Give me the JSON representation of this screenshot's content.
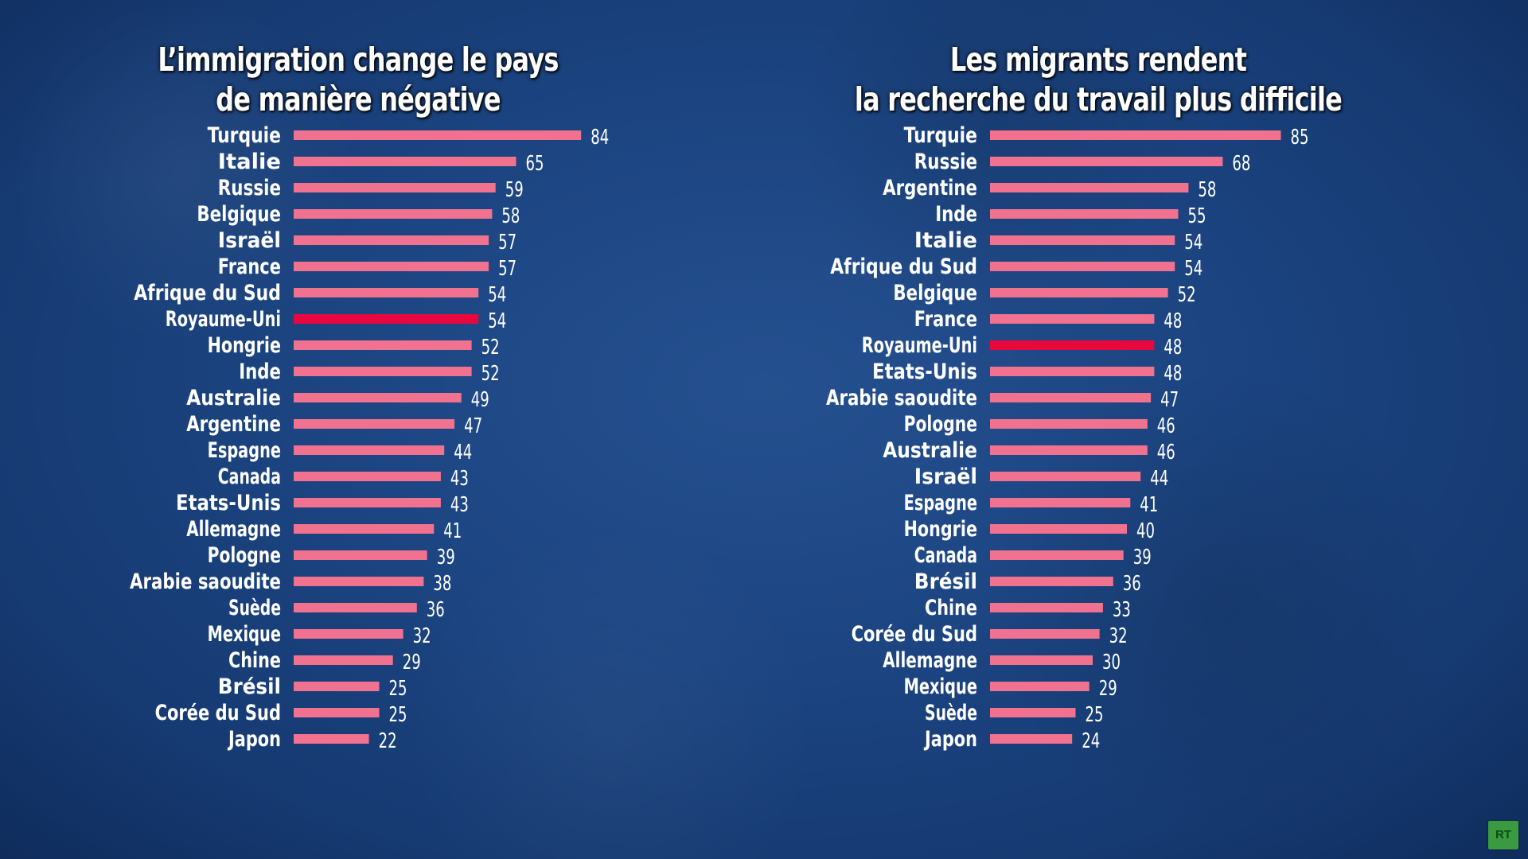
{
  "colors": {
    "bar": "#f0728f",
    "highlight_bar": "#e8083e",
    "text": "#ffffff",
    "background": "#1c4582"
  },
  "logo": {
    "text": "RT"
  },
  "chart_data": [
    {
      "type": "bar",
      "orientation": "horizontal",
      "title_lines": [
        "L’immigration change le pays",
        "de manière négative"
      ],
      "highlight": "Royaume-Uni",
      "categories": [
        "Turquie",
        "Italie",
        "Russie",
        "Belgique",
        "Israël",
        "France",
        "Afrique du Sud",
        "Royaume-Uni",
        "Hongrie",
        "Inde",
        "Australie",
        "Argentine",
        "Espagne",
        "Canada",
        "Etats-Unis",
        "Allemagne",
        "Pologne",
        "Arabie saoudite",
        "Suède",
        "Mexique",
        "Chine",
        "Brésil",
        "Corée du Sud",
        "Japon"
      ],
      "values": [
        84,
        65,
        59,
        58,
        57,
        57,
        54,
        54,
        52,
        52,
        49,
        47,
        44,
        43,
        43,
        41,
        39,
        38,
        36,
        32,
        29,
        25,
        25,
        22
      ],
      "xlim": [
        0,
        100
      ]
    },
    {
      "type": "bar",
      "orientation": "horizontal",
      "title_lines": [
        "Les migrants rendent",
        "la recherche du travail plus difficile"
      ],
      "highlight": "Royaume-Uni",
      "categories": [
        "Turquie",
        "Russie",
        "Argentine",
        "Inde",
        "Italie",
        "Afrique du Sud",
        "Belgique",
        "France",
        "Royaume-Uni",
        "Etats-Unis",
        "Arabie saoudite",
        "Pologne",
        "Australie",
        "Israël",
        "Espagne",
        "Hongrie",
        "Canada",
        "Brésil",
        "Chine",
        "Corée du Sud",
        "Allemagne",
        "Mexique",
        "Suède",
        "Japon"
      ],
      "values": [
        85,
        68,
        58,
        55,
        54,
        54,
        52,
        48,
        48,
        48,
        47,
        46,
        46,
        44,
        41,
        40,
        39,
        36,
        33,
        32,
        30,
        29,
        25,
        24
      ],
      "xlim": [
        0,
        100
      ]
    }
  ]
}
